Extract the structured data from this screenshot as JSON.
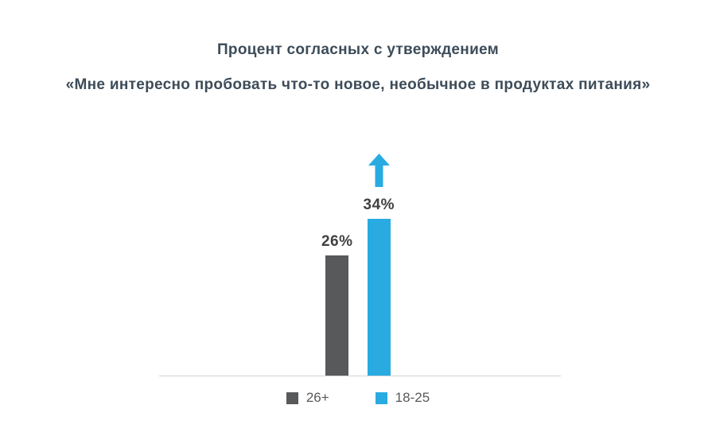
{
  "title": "Процент согласных с утверждением",
  "subtitle": "«Мне интересно пробовать что-то новое, необычное в продуктах питания»",
  "colors": {
    "accent_blue": "#29abe2",
    "bar_gray": "#58595b",
    "title_text": "#3d4c59",
    "value_label_text": "#414042",
    "axis_line": "#d1d3d4"
  },
  "chart_data": {
    "type": "bar",
    "title": "Процент согласных с утверждением",
    "subtitle": "«Мне интересно пробовать что-то новое, необычное в продуктах питания»",
    "categories": [
      "26+",
      "18-25"
    ],
    "values": [
      26,
      34
    ],
    "value_labels": [
      "26%",
      "34%"
    ],
    "ylim": [
      0,
      48
    ],
    "grid": false,
    "legend_position": "bottom",
    "series_colors": [
      "#58595b",
      "#29abe2"
    ],
    "annotations": [
      "upward arrow above the 18-25 bar"
    ]
  },
  "legend": {
    "items": [
      {
        "label": "26+",
        "color": "#58595b"
      },
      {
        "label": "18-25",
        "color": "#29abe2"
      }
    ]
  }
}
